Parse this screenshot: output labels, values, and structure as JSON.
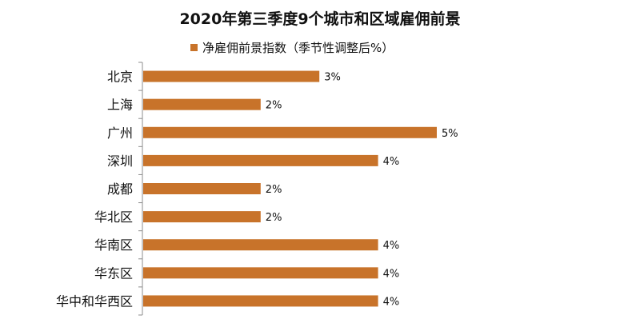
{
  "chart_data": {
    "type": "bar",
    "orientation": "horizontal",
    "title": "2020年第三季度9个城市和区域雇佣前景",
    "categories": [
      "北京",
      "上海",
      "广州",
      "深圳",
      "成都",
      "华北区",
      "华南区",
      "华东区",
      "华中和华西区"
    ],
    "series": [
      {
        "name": "净雇佣前景指数（季节性调整后%）",
        "values": [
          3,
          2,
          5,
          4,
          2,
          2,
          4,
          4,
          4
        ],
        "labels": [
          "3%",
          "2%",
          "5%",
          "4%",
          "2%",
          "2%",
          "4%",
          "4%",
          "4%"
        ],
        "color": "#c8732a"
      }
    ],
    "xlim": [
      0,
      5.6
    ],
    "xlabel": "",
    "ylabel": "",
    "grid": false,
    "legend_position": "top"
  }
}
